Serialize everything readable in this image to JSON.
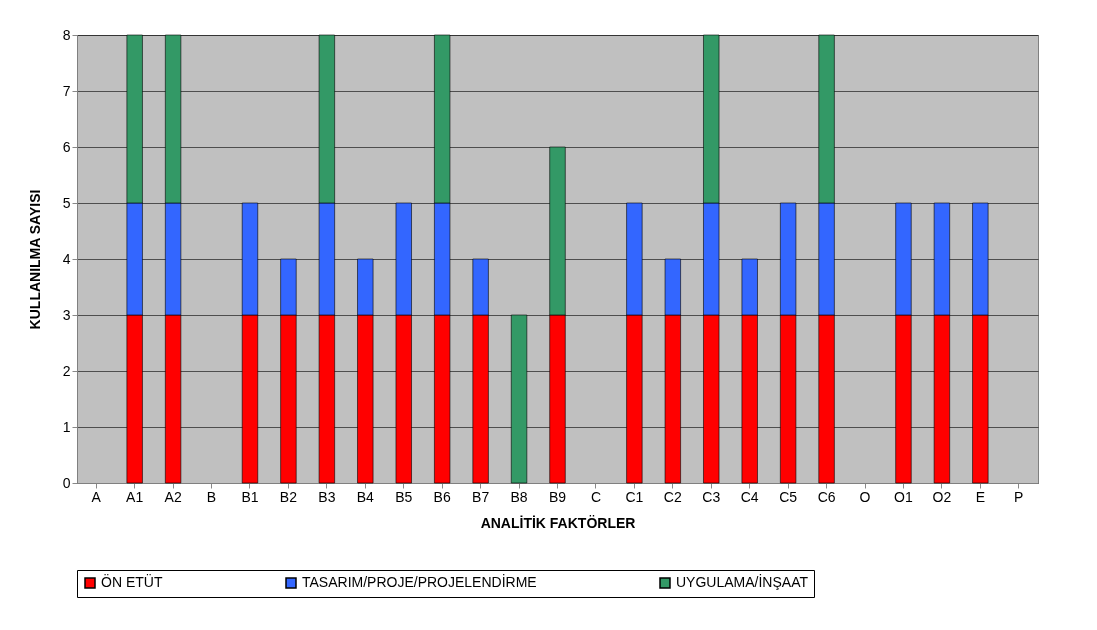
{
  "chart_data": {
    "type": "bar",
    "stacked": true,
    "xlabel": "ANALİTİK FAKTÖRLER",
    "ylabel": "KULLANILMA SAYISI",
    "categories": [
      "A",
      "A1",
      "A2",
      "B",
      "B1",
      "B2",
      "B3",
      "B4",
      "B5",
      "B6",
      "B7",
      "B8",
      "B9",
      "C",
      "C1",
      "C2",
      "C3",
      "C4",
      "C5",
      "C6",
      "O",
      "O1",
      "O2",
      "E",
      "P"
    ],
    "series": [
      {
        "name": "ÖN ETÜT",
        "color": "#ff0000",
        "values": [
          null,
          3,
          3,
          null,
          3,
          3,
          3,
          3,
          3,
          3,
          3,
          null,
          3,
          null,
          3,
          3,
          3,
          3,
          3,
          3,
          null,
          3,
          3,
          3,
          null
        ]
      },
      {
        "name": "TASARIM/PROJE/PROJELENDİRME",
        "color": "#3366ff",
        "values": [
          null,
          2,
          2,
          null,
          2,
          1,
          2,
          1,
          2,
          2,
          1,
          null,
          null,
          null,
          2,
          1,
          2,
          1,
          2,
          2,
          null,
          2,
          2,
          2,
          null
        ]
      },
      {
        "name": "UYGULAMA/İNŞAAT",
        "color": "#339966",
        "values": [
          null,
          3,
          3,
          null,
          null,
          null,
          3,
          null,
          null,
          3,
          null,
          3,
          3,
          null,
          null,
          null,
          3,
          null,
          null,
          3,
          null,
          null,
          null,
          null,
          null
        ]
      }
    ],
    "ylim": [
      0,
      8
    ],
    "yticks": [
      0,
      1,
      2,
      3,
      4,
      5,
      6,
      7,
      8
    ],
    "grid": "y",
    "legend": "bottom"
  }
}
